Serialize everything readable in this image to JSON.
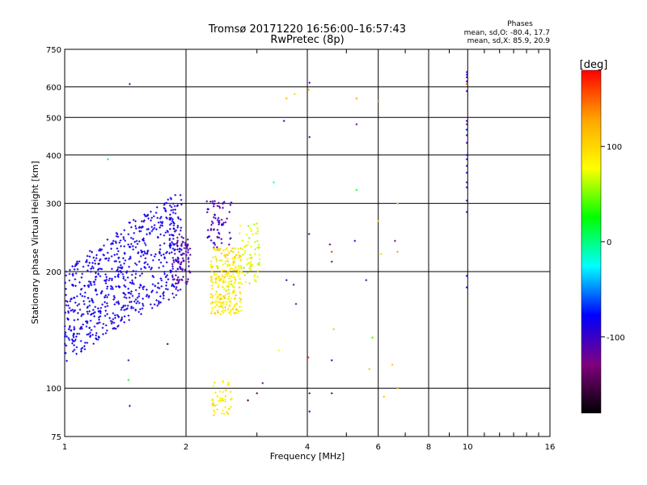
{
  "chart_data": {
    "type": "scatter",
    "title": "Tromsø 20171220 16:56:00–16:57:43",
    "subtitle": "RwPretec (8p)",
    "xlabel": "Frequency [MHz]",
    "ylabel": "Stationary phase Virtual Height [km]",
    "x_scale": "log",
    "y_scale": "log",
    "xlim": [
      1,
      16
    ],
    "ylim": [
      75,
      750
    ],
    "x_ticks": [
      1,
      2,
      4,
      6,
      8,
      10,
      16
    ],
    "y_ticks": [
      75,
      100,
      200,
      300,
      400,
      500,
      600,
      750
    ],
    "grid": true,
    "stats": {
      "heading": "Phases",
      "line_o": "mean, sd,O: -80.4, 17.7",
      "line_x": "mean, sd,X:  85.9, 20.9"
    },
    "colorbar": {
      "label": "[deg]",
      "range": [
        -180,
        180
      ],
      "ticks": [
        100,
        0,
        -100
      ],
      "colors": [
        "#ff0000",
        "#ffa500",
        "#ffff00",
        "#00ff00",
        "#00ffff",
        "#0000ff",
        "#800080",
        "#000000"
      ]
    },
    "clusters": [
      {
        "f_min": 1.0,
        "f_max": 1.95,
        "h_min": 115,
        "h_max": 320,
        "phase_mean": -85,
        "phase_sd": 12,
        "count": 720
      },
      {
        "f_min": 1.85,
        "f_max": 2.05,
        "h_min": 180,
        "h_max": 250,
        "phase_mean": -110,
        "phase_sd": 10,
        "count": 90
      },
      {
        "f_min": 2.25,
        "f_max": 2.6,
        "h_min": 230,
        "h_max": 305,
        "phase_mean": -105,
        "phase_sd": 15,
        "count": 70
      },
      {
        "f_min": 2.3,
        "f_max": 2.75,
        "h_min": 155,
        "h_max": 230,
        "phase_mean": 90,
        "phase_sd": 25,
        "count": 260
      },
      {
        "f_min": 2.7,
        "f_max": 3.05,
        "h_min": 185,
        "h_max": 270,
        "phase_mean": 70,
        "phase_sd": 20,
        "count": 70
      },
      {
        "f_min": 2.3,
        "f_max": 2.6,
        "h_min": 85,
        "h_max": 105,
        "phase_mean": 85,
        "phase_sd": 20,
        "count": 50
      }
    ],
    "points": [
      {
        "f": 1.45,
        "h": 610,
        "phase": -120
      },
      {
        "f": 1.28,
        "h": 390,
        "phase": 10
      },
      {
        "f": 1.45,
        "h": 90,
        "phase": -110
      },
      {
        "f": 1.44,
        "h": 105,
        "phase": 20
      },
      {
        "f": 1.44,
        "h": 118,
        "phase": -110
      },
      {
        "f": 1.8,
        "h": 130,
        "phase": -150
      },
      {
        "f": 3.3,
        "h": 340,
        "phase": -20
      },
      {
        "f": 3.4,
        "h": 125,
        "phase": 80
      },
      {
        "f": 3.1,
        "h": 103,
        "phase": -120
      },
      {
        "f": 3.0,
        "h": 97,
        "phase": -140
      },
      {
        "f": 2.85,
        "h": 93,
        "phase": -150
      },
      {
        "f": 3.55,
        "h": 190,
        "phase": -110
      },
      {
        "f": 3.7,
        "h": 185,
        "phase": -120
      },
      {
        "f": 3.75,
        "h": 165,
        "phase": -120
      },
      {
        "f": 3.55,
        "h": 560,
        "phase": 120
      },
      {
        "f": 3.72,
        "h": 575,
        "phase": 95
      },
      {
        "f": 3.5,
        "h": 490,
        "phase": -100
      },
      {
        "f": 4.05,
        "h": 615,
        "phase": -110
      },
      {
        "f": 4.03,
        "h": 590,
        "phase": 130
      },
      {
        "f": 4.05,
        "h": 445,
        "phase": -110
      },
      {
        "f": 4.04,
        "h": 250,
        "phase": -110
      },
      {
        "f": 4.02,
        "h": 120,
        "phase": 170
      },
      {
        "f": 4.05,
        "h": 97,
        "phase": -120
      },
      {
        "f": 4.05,
        "h": 87,
        "phase": -80
      },
      {
        "f": 4.55,
        "h": 235,
        "phase": -130
      },
      {
        "f": 4.6,
        "h": 225,
        "phase": 165
      },
      {
        "f": 4.6,
        "h": 212,
        "phase": -130
      },
      {
        "f": 4.65,
        "h": 142,
        "phase": 110
      },
      {
        "f": 4.6,
        "h": 118,
        "phase": -80
      },
      {
        "f": 4.6,
        "h": 97,
        "phase": -120
      },
      {
        "f": 5.3,
        "h": 560,
        "phase": 130
      },
      {
        "f": 5.3,
        "h": 480,
        "phase": -120
      },
      {
        "f": 5.3,
        "h": 325,
        "phase": 20
      },
      {
        "f": 5.25,
        "h": 240,
        "phase": -90
      },
      {
        "f": 5.6,
        "h": 190,
        "phase": -110
      },
      {
        "f": 5.8,
        "h": 135,
        "phase": 40
      },
      {
        "f": 5.7,
        "h": 112,
        "phase": 110
      },
      {
        "f": 6.0,
        "h": 550,
        "phase": 140
      },
      {
        "f": 6.0,
        "h": 270,
        "phase": 110
      },
      {
        "f": 6.1,
        "h": 222,
        "phase": 100
      },
      {
        "f": 6.2,
        "h": 95,
        "phase": 110
      },
      {
        "f": 6.6,
        "h": 240,
        "phase": -120
      },
      {
        "f": 6.7,
        "h": 225,
        "phase": 130
      },
      {
        "f": 6.7,
        "h": 300,
        "phase": 110
      },
      {
        "f": 6.5,
        "h": 115,
        "phase": 110
      },
      {
        "f": 6.7,
        "h": 100,
        "phase": 130
      },
      {
        "f": 9.95,
        "h": 655,
        "phase": -100
      },
      {
        "f": 9.95,
        "h": 645,
        "phase": -110
      },
      {
        "f": 9.95,
        "h": 635,
        "phase": -90
      },
      {
        "f": 9.95,
        "h": 620,
        "phase": -100
      },
      {
        "f": 9.95,
        "h": 610,
        "phase": 160
      },
      {
        "f": 9.95,
        "h": 585,
        "phase": -100
      },
      {
        "f": 9.95,
        "h": 490,
        "phase": -100
      },
      {
        "f": 9.95,
        "h": 480,
        "phase": -110
      },
      {
        "f": 9.95,
        "h": 465,
        "phase": -80
      },
      {
        "f": 9.95,
        "h": 450,
        "phase": -100
      },
      {
        "f": 9.95,
        "h": 430,
        "phase": -110
      },
      {
        "f": 9.95,
        "h": 400,
        "phase": -100
      },
      {
        "f": 9.95,
        "h": 390,
        "phase": -90
      },
      {
        "f": 9.95,
        "h": 375,
        "phase": -110
      },
      {
        "f": 9.95,
        "h": 360,
        "phase": -100
      },
      {
        "f": 9.95,
        "h": 340,
        "phase": -110
      },
      {
        "f": 9.95,
        "h": 330,
        "phase": -90
      },
      {
        "f": 9.95,
        "h": 305,
        "phase": -100
      },
      {
        "f": 9.95,
        "h": 285,
        "phase": -110
      },
      {
        "f": 9.95,
        "h": 195,
        "phase": -80
      },
      {
        "f": 9.95,
        "h": 182,
        "phase": -90
      }
    ]
  }
}
